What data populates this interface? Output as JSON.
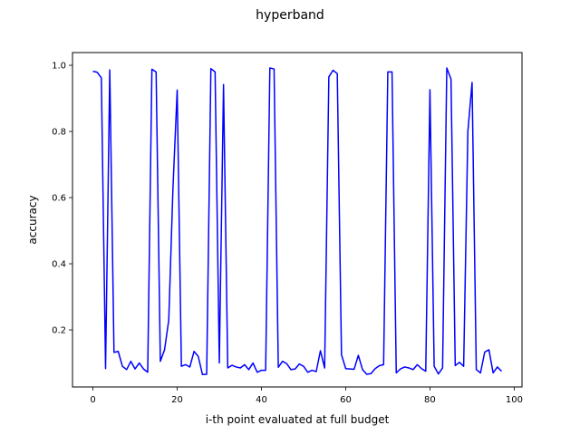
{
  "chart_data": {
    "type": "line",
    "title": "hyperband",
    "xlabel": "i-th point evaluated at full budget",
    "ylabel": "accuracy",
    "xlim": [
      -4.85,
      101.85
    ],
    "ylim": [
      0.0275,
      1.0385
    ],
    "xticks": [
      0,
      20,
      40,
      60,
      80,
      100
    ],
    "yticks": [
      0.2,
      0.4,
      0.6,
      0.8,
      1.0
    ],
    "xtick_labels": [
      "0",
      "20",
      "40",
      "60",
      "80",
      "100"
    ],
    "ytick_labels": [
      "0.2",
      "0.4",
      "0.6",
      "0.8",
      "1.0"
    ],
    "grid": false,
    "series": [
      {
        "color": "#0000ff",
        "x": [
          0,
          1,
          2,
          3,
          4,
          5,
          6,
          7,
          8,
          9,
          10,
          11,
          12,
          13,
          14,
          15,
          16,
          17,
          18,
          19,
          20,
          21,
          22,
          23,
          24,
          25,
          26,
          27,
          28,
          29,
          30,
          31,
          32,
          33,
          34,
          35,
          36,
          37,
          38,
          39,
          40,
          41,
          42,
          43,
          44,
          45,
          46,
          47,
          48,
          49,
          50,
          51,
          52,
          53,
          54,
          55,
          56,
          57,
          58,
          59,
          60,
          61,
          62,
          63,
          64,
          65,
          66,
          67,
          68,
          69,
          70,
          71,
          72,
          73,
          74,
          75,
          76,
          77,
          78,
          79,
          80,
          81,
          82,
          83,
          84,
          85,
          86,
          87,
          88,
          89,
          90,
          91,
          92,
          93,
          94,
          95,
          96,
          97
        ],
        "y": [
          0.982,
          0.979,
          0.962,
          0.083,
          0.986,
          0.132,
          0.135,
          0.09,
          0.08,
          0.105,
          0.082,
          0.1,
          0.082,
          0.072,
          0.988,
          0.98,
          0.105,
          0.14,
          0.23,
          0.63,
          0.925,
          0.09,
          0.095,
          0.088,
          0.135,
          0.12,
          0.065,
          0.066,
          0.99,
          0.98,
          0.1,
          0.942,
          0.085,
          0.093,
          0.088,
          0.085,
          0.095,
          0.08,
          0.1,
          0.072,
          0.078,
          0.078,
          0.992,
          0.989,
          0.087,
          0.105,
          0.098,
          0.08,
          0.082,
          0.097,
          0.09,
          0.072,
          0.078,
          0.074,
          0.137,
          0.085,
          0.965,
          0.985,
          0.975,
          0.125,
          0.083,
          0.082,
          0.081,
          0.123,
          0.08,
          0.066,
          0.068,
          0.083,
          0.092,
          0.095,
          0.98,
          0.98,
          0.07,
          0.082,
          0.088,
          0.085,
          0.08,
          0.095,
          0.083,
          0.075,
          0.926,
          0.09,
          0.067,
          0.085,
          0.992,
          0.958,
          0.092,
          0.102,
          0.09,
          0.8,
          0.948,
          0.08,
          0.07,
          0.133,
          0.14,
          0.07,
          0.088,
          0.075
        ]
      }
    ]
  }
}
